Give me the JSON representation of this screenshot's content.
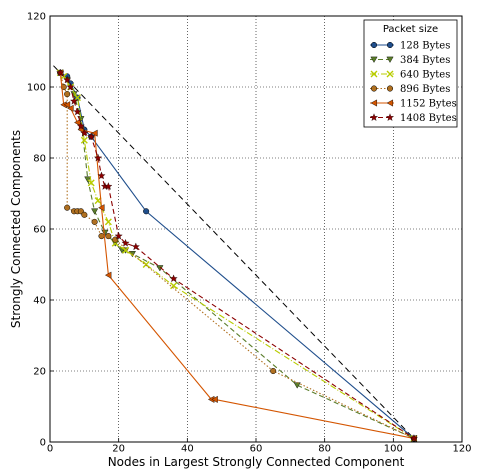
{
  "chart_data": {
    "type": "line",
    "title": "",
    "xlabel": "Nodes in Largest Strongly Connected Component",
    "ylabel": "Strongly Connected Components",
    "xlim": [
      0,
      120
    ],
    "ylim": [
      0,
      120
    ],
    "xticks": [
      0,
      20,
      40,
      60,
      80,
      100,
      120
    ],
    "yticks": [
      0,
      20,
      40,
      60,
      80,
      100,
      120
    ],
    "grid": true,
    "legend_title": "Packet size",
    "legend_position": "top-right",
    "reference_line": {
      "from": [
        1,
        106
      ],
      "to": [
        106,
        1
      ],
      "style": "dashed",
      "color": "#000000"
    },
    "series": [
      {
        "name": "128 Bytes",
        "color": "#1f4e8c",
        "marker": "circle",
        "dash": "solid",
        "points": [
          [
            3,
            104
          ],
          [
            5,
            103
          ],
          [
            6,
            101
          ],
          [
            8,
            97
          ],
          [
            10,
            88
          ],
          [
            12,
            86
          ],
          [
            28,
            65
          ],
          [
            106,
            1
          ]
        ]
      },
      {
        "name": "384 Bytes",
        "color": "#5a7d2a",
        "marker": "triangle-down",
        "dash": "dashed",
        "points": [
          [
            3,
            104
          ],
          [
            5,
            102
          ],
          [
            7,
            98
          ],
          [
            9,
            91
          ],
          [
            11,
            74
          ],
          [
            13,
            65
          ],
          [
            16,
            59
          ],
          [
            19,
            56
          ],
          [
            21,
            54
          ],
          [
            22,
            54
          ],
          [
            24,
            53
          ],
          [
            32,
            49
          ],
          [
            72,
            16
          ],
          [
            106,
            1
          ]
        ]
      },
      {
        "name": "640 Bytes",
        "color": "#b8cc00",
        "marker": "x",
        "dash": "dashdot",
        "points": [
          [
            3,
            104
          ],
          [
            4,
            103
          ],
          [
            6,
            100
          ],
          [
            8,
            97
          ],
          [
            10,
            85
          ],
          [
            12,
            73
          ],
          [
            14,
            68
          ],
          [
            17,
            62
          ],
          [
            19,
            56
          ],
          [
            22,
            54
          ],
          [
            28,
            50
          ],
          [
            36,
            44
          ],
          [
            106,
            1
          ]
        ]
      },
      {
        "name": "896 Bytes",
        "color": "#b07020",
        "marker": "circle",
        "dash": "dotted",
        "points": [
          [
            3,
            104
          ],
          [
            4,
            100
          ],
          [
            5,
            98
          ],
          [
            5,
            66
          ],
          [
            7,
            65
          ],
          [
            8,
            65
          ],
          [
            9,
            65
          ],
          [
            10,
            64
          ],
          [
            13,
            62
          ],
          [
            15,
            58
          ],
          [
            17,
            58
          ],
          [
            19,
            57
          ],
          [
            65,
            20
          ],
          [
            106,
            1
          ]
        ]
      },
      {
        "name": "1152 Bytes",
        "color": "#d45500",
        "marker": "triangle-left",
        "dash": "solid",
        "points": [
          [
            3,
            104
          ],
          [
            4,
            95
          ],
          [
            5,
            95
          ],
          [
            6,
            94
          ],
          [
            8,
            90
          ],
          [
            9,
            88
          ],
          [
            13,
            87
          ],
          [
            15,
            66
          ],
          [
            17,
            47
          ],
          [
            47,
            12
          ],
          [
            48,
            12
          ],
          [
            106,
            1
          ]
        ]
      },
      {
        "name": "1408 Bytes",
        "color": "#8b0000",
        "marker": "star",
        "dash": "dashed",
        "points": [
          [
            3,
            104
          ],
          [
            5,
            102
          ],
          [
            6,
            100
          ],
          [
            7,
            96
          ],
          [
            8,
            93
          ],
          [
            9,
            89
          ],
          [
            10,
            87
          ],
          [
            12,
            86
          ],
          [
            14,
            80
          ],
          [
            15,
            75
          ],
          [
            16,
            72
          ],
          [
            17,
            72
          ],
          [
            20,
            58
          ],
          [
            22,
            56
          ],
          [
            25,
            55
          ],
          [
            36,
            46
          ],
          [
            106,
            1
          ]
        ]
      }
    ]
  }
}
